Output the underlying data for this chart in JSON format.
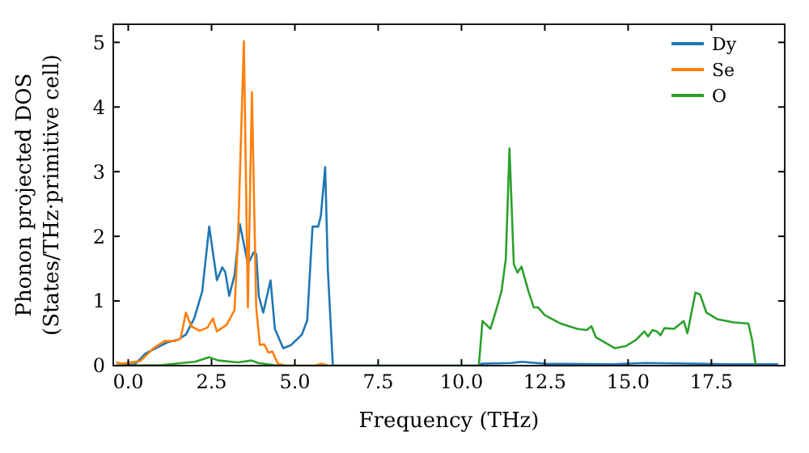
{
  "chart_data": {
    "type": "line",
    "xlabel": "Frequency (THz)",
    "ylabel": "Phonon projected DOS\n(States/THz·primitive cell)",
    "xlim": [
      -0.45,
      19.7
    ],
    "ylim": [
      0,
      5.28
    ],
    "xticks": [
      {
        "value": 0,
        "label": "0.0"
      },
      {
        "value": 2.5,
        "label": "2.5"
      },
      {
        "value": 5,
        "label": "5.0"
      },
      {
        "value": 7.5,
        "label": "7.5"
      },
      {
        "value": 10,
        "label": "10.0"
      },
      {
        "value": 12.5,
        "label": "12.5"
      },
      {
        "value": 15,
        "label": "15.0"
      },
      {
        "value": 17.5,
        "label": "17.5"
      }
    ],
    "yticks": [
      0,
      1,
      2,
      3,
      4,
      5
    ],
    "grid": false,
    "legend": "top right",
    "marker": "none",
    "line_style": "solid",
    "series": [
      {
        "name": "Dy",
        "color": "#1f77b4",
        "x": [
          -0.37,
          0.2,
          0.52,
          1.17,
          1.49,
          1.73,
          1.98,
          2.22,
          2.43,
          2.66,
          2.82,
          2.91,
          3.03,
          3.19,
          3.35,
          3.59,
          3.76,
          3.84,
          3.92,
          4.05,
          4.27,
          4.4,
          4.65,
          4.89,
          5.21,
          5.37,
          5.53,
          5.7,
          5.78,
          5.91,
          5.99,
          6.14,
          10.5,
          10.6,
          11.5,
          11.8,
          12.5,
          14.5,
          15.5,
          17,
          18,
          19.5
        ],
        "values": [
          0,
          0.02,
          0.19,
          0.36,
          0.4,
          0.48,
          0.73,
          1.15,
          2.15,
          1.32,
          1.52,
          1.45,
          1.08,
          1.4,
          2.19,
          1.57,
          1.75,
          1.73,
          1.07,
          0.82,
          1.32,
          0.57,
          0.27,
          0.32,
          0.48,
          0.7,
          2.15,
          2.15,
          2.32,
          3.07,
          1.48,
          0,
          0,
          0.03,
          0.04,
          0.06,
          0.03,
          0.02,
          0.04,
          0.03,
          0.02,
          0.02
        ]
      },
      {
        "name": "Se",
        "color": "#ff7f0e",
        "x": [
          -0.37,
          -0.2,
          0.36,
          0.76,
          1.09,
          1.41,
          1.57,
          1.73,
          1.89,
          2.14,
          2.38,
          2.54,
          2.66,
          2.95,
          3.19,
          3.3,
          3.47,
          3.59,
          3.71,
          3.84,
          3.95,
          4.08,
          4.21,
          4.32,
          4.49,
          4.73,
          5.6,
          5.8,
          6.0
        ],
        "values": [
          0.05,
          0.03,
          0.07,
          0.27,
          0.38,
          0.38,
          0.42,
          0.82,
          0.61,
          0.54,
          0.59,
          0.73,
          0.53,
          0.63,
          0.86,
          2.07,
          5.02,
          0.9,
          4.23,
          0.9,
          0.32,
          0.33,
          0.2,
          0.22,
          0.03,
          0,
          0,
          0.03,
          0
        ]
      },
      {
        "name": "O",
        "color": "#2ca02c",
        "x": [
          -0.37,
          1.0,
          2.0,
          2.43,
          2.7,
          3.3,
          3.7,
          3.9,
          4.5,
          10.52,
          10.63,
          10.87,
          11.04,
          11.2,
          11.33,
          11.44,
          11.57,
          11.68,
          11.8,
          12.01,
          12.17,
          12.3,
          12.5,
          12.98,
          13.47,
          13.76,
          13.9,
          14.03,
          14.6,
          14.92,
          15.24,
          15.49,
          15.6,
          15.73,
          15.86,
          15.97,
          16.09,
          16.38,
          16.67,
          16.78,
          17.02,
          17.16,
          17.35,
          17.67,
          18.16,
          18.61,
          18.72,
          18.83
        ],
        "values": [
          0,
          0.01,
          0.06,
          0.13,
          0.08,
          0.05,
          0.08,
          0.04,
          0,
          0,
          0.69,
          0.57,
          0.86,
          1.15,
          1.65,
          3.36,
          1.57,
          1.44,
          1.53,
          1.15,
          0.9,
          0.9,
          0.78,
          0.65,
          0.57,
          0.55,
          0.61,
          0.44,
          0.27,
          0.3,
          0.4,
          0.53,
          0.45,
          0.55,
          0.53,
          0.47,
          0.58,
          0.57,
          0.69,
          0.5,
          1.13,
          1.1,
          0.82,
          0.72,
          0.67,
          0.65,
          0.4,
          0
        ]
      }
    ]
  }
}
